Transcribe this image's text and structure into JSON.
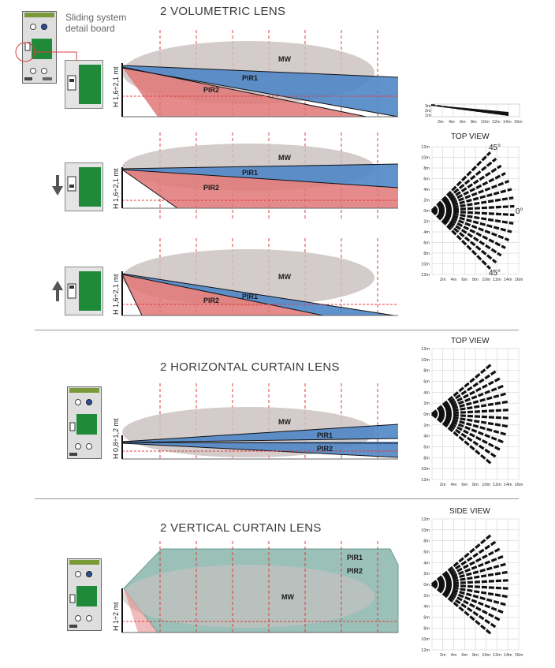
{
  "caption": {
    "line1": "Sliding system",
    "line2": "detail board"
  },
  "sections": {
    "volumetric": "2 VOLUMETRIC LENS",
    "horizontal": "2 HORIZONTAL CURTAIN LENS",
    "vertical": "2 VERTICAL CURTAIN LENS"
  },
  "height_labels": {
    "volumetric": "H 1,6÷2,1 mt",
    "horizontal": "H 0,8÷1,2 mt",
    "vertical": "H 1÷2 mt"
  },
  "zones": {
    "mw": "MW",
    "pir1": "PIR1",
    "pir2": "PIR2"
  },
  "views": {
    "top": "TOP VIEW",
    "side": "SIDE VIEW"
  },
  "angles": {
    "upper": "45°",
    "middle": "0°",
    "lower": "45°"
  },
  "grid": {
    "x_ticks": [
      "2m",
      "4m",
      "6m",
      "8m",
      "10m",
      "12m",
      "14m",
      "16m"
    ],
    "y_ticks": [
      "12m",
      "10m",
      "8m",
      "6m",
      "4m",
      "2m",
      "0m",
      "2m",
      "4m",
      "6m",
      "8m",
      "10m",
      "12m"
    ],
    "small_y_ticks": [
      "3m",
      "2m",
      "1m"
    ]
  },
  "colors": {
    "mw": "#cdc2c2",
    "pir1": "#4f86c6",
    "pir2": "#e07777",
    "vertical_pir": "#8fb9b0",
    "pcb": "#1f8a3a",
    "guide": "#e03c3c"
  }
}
